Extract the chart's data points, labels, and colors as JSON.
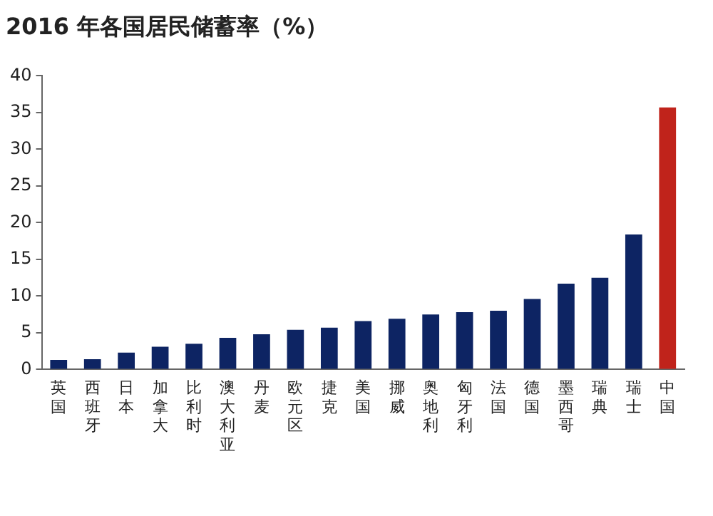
{
  "chart_data": {
    "type": "bar",
    "title": "2016 年各国居民储蓄率（%）",
    "categories": [
      "英国",
      "西班牙",
      "日本",
      "加拿大",
      "比利时",
      "澳大利亚",
      "丹麦",
      "欧元区",
      "捷克",
      "美国",
      "挪威",
      "奥地利",
      "匈牙利",
      "法国",
      "德国",
      "墨西哥",
      "瑞典",
      "瑞士",
      "中国"
    ],
    "values": [
      1.3,
      1.4,
      2.3,
      3.1,
      3.5,
      4.3,
      4.8,
      5.4,
      5.7,
      6.6,
      6.9,
      7.5,
      7.8,
      8.0,
      9.6,
      11.7,
      12.5,
      18.4,
      35.7
    ],
    "colors": [
      "#0d2463",
      "#0d2463",
      "#0d2463",
      "#0d2463",
      "#0d2463",
      "#0d2463",
      "#0d2463",
      "#0d2463",
      "#0d2463",
      "#0d2463",
      "#0d2463",
      "#0d2463",
      "#0d2463",
      "#0d2463",
      "#0d2463",
      "#0d2463",
      "#0d2463",
      "#0d2463",
      "#c0231b"
    ],
    "ylim": [
      0,
      40
    ],
    "yticks": [
      0,
      5,
      10,
      15,
      20,
      25,
      30,
      35,
      40
    ],
    "grid": false,
    "legend": false
  }
}
